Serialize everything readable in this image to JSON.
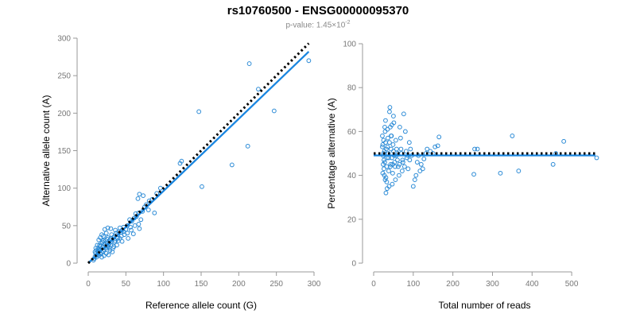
{
  "header": {
    "title": "rs10760500 - ENSG00000095370",
    "subtitle_prefix": "p-value: 1.45×10",
    "subtitle_exponent": "-2"
  },
  "colors": {
    "points": "#2c8bd6",
    "fit_line": "#1a86e0",
    "reference_line": "#000000"
  },
  "chart_data": [
    {
      "type": "scatter",
      "xlabel": "Reference allele count (G)",
      "ylabel": "Alternative allele count (A)",
      "xlim": [
        0,
        300
      ],
      "ylim": [
        0,
        300
      ],
      "xticks": [
        0,
        50,
        100,
        150,
        200,
        250,
        300
      ],
      "yticks": [
        0,
        50,
        100,
        150,
        200,
        250,
        300
      ],
      "grid": false,
      "fit_line": {
        "x": [
          0,
          293
        ],
        "y": [
          0,
          282
        ]
      },
      "reference_line": {
        "x": [
          0,
          293
        ],
        "y": [
          0,
          293
        ]
      },
      "points": [
        [
          293,
          270
        ],
        [
          214,
          266
        ],
        [
          226,
          232
        ],
        [
          247,
          203
        ],
        [
          147,
          202
        ],
        [
          212,
          156
        ],
        [
          191,
          131
        ],
        [
          151,
          102
        ],
        [
          124,
          136
        ],
        [
          122,
          133
        ],
        [
          96,
          100
        ],
        [
          91,
          93
        ],
        [
          85,
          85
        ],
        [
          81,
          83
        ],
        [
          77,
          78
        ],
        [
          73,
          90
        ],
        [
          68,
          92
        ],
        [
          66,
          86
        ],
        [
          75,
          75
        ],
        [
          72,
          69
        ],
        [
          67,
          67
        ],
        [
          63,
          66
        ],
        [
          61,
          60
        ],
        [
          58,
          56
        ],
        [
          55,
          58
        ],
        [
          67,
          52
        ],
        [
          68,
          46
        ],
        [
          56,
          48
        ],
        [
          52,
          50
        ],
        [
          50,
          45
        ],
        [
          47,
          48
        ],
        [
          45,
          44
        ],
        [
          43,
          41
        ],
        [
          41,
          42
        ],
        [
          39,
          38
        ],
        [
          37,
          40
        ],
        [
          35,
          36
        ],
        [
          33,
          34
        ],
        [
          31,
          29
        ],
        [
          30,
          33
        ],
        [
          29,
          31
        ],
        [
          28,
          26
        ],
        [
          27,
          24
        ],
        [
          26,
          22
        ],
        [
          25,
          27
        ],
        [
          24,
          20
        ],
        [
          23,
          23
        ],
        [
          22,
          25
        ],
        [
          21,
          18
        ],
        [
          20,
          16
        ],
        [
          19,
          21
        ],
        [
          18,
          14
        ],
        [
          17,
          19
        ],
        [
          16,
          12
        ],
        [
          15,
          17
        ],
        [
          14,
          10
        ],
        [
          13,
          15
        ],
        [
          12,
          11
        ],
        [
          11,
          8
        ],
        [
          10,
          13
        ],
        [
          9,
          9
        ],
        [
          8,
          6
        ],
        [
          7,
          4
        ],
        [
          30,
          46
        ],
        [
          26,
          47
        ],
        [
          22,
          45
        ],
        [
          18,
          38
        ],
        [
          16,
          34
        ],
        [
          14,
          31
        ],
        [
          20,
          36
        ],
        [
          35,
          28
        ],
        [
          40,
          30
        ],
        [
          44,
          36
        ],
        [
          48,
          38
        ],
        [
          38,
          24
        ],
        [
          33,
          20
        ],
        [
          29,
          17
        ],
        [
          24,
          13
        ],
        [
          21,
          10
        ],
        [
          18,
          8
        ],
        [
          32,
          15
        ],
        [
          27,
          11
        ],
        [
          23,
          30
        ],
        [
          26,
          34
        ],
        [
          19,
          28
        ],
        [
          15,
          24
        ],
        [
          13,
          20
        ],
        [
          11,
          17
        ],
        [
          9,
          15
        ],
        [
          12,
          24
        ],
        [
          10,
          20
        ],
        [
          28,
          20
        ],
        [
          34,
          22
        ],
        [
          36,
          30
        ],
        [
          42,
          33
        ],
        [
          45,
          29
        ],
        [
          52,
          40
        ],
        [
          57,
          44
        ],
        [
          62,
          50
        ],
        [
          64,
          62
        ],
        [
          70,
          58
        ],
        [
          80,
          71
        ],
        [
          88,
          67
        ],
        [
          60,
          39
        ],
        [
          53,
          33
        ],
        [
          47,
          42
        ],
        [
          39,
          33
        ],
        [
          31,
          38
        ],
        [
          25,
          32
        ],
        [
          17,
          27
        ],
        [
          16,
          22
        ],
        [
          14,
          18
        ],
        [
          13,
          12
        ],
        [
          20,
          30
        ],
        [
          24,
          40
        ],
        [
          30,
          24
        ],
        [
          36,
          44
        ],
        [
          42,
          47
        ]
      ]
    },
    {
      "type": "scatter",
      "xlabel": "Total number of reads",
      "ylabel": "Percentage alternative (A)",
      "xlim": [
        0,
        560
      ],
      "ylim": [
        0,
        100
      ],
      "xticks": [
        0,
        100,
        200,
        300,
        400,
        500
      ],
      "yticks": [
        0,
        20,
        40,
        60,
        80,
        100
      ],
      "grid": false,
      "fit_line": {
        "x": [
          0,
          560
        ],
        "y": [
          49.1,
          49.1
        ]
      },
      "reference_line": {
        "x": [
          0,
          560
        ],
        "y": [
          50,
          50
        ]
      },
      "points": [
        [
          563,
          48
        ],
        [
          480,
          55.5
        ],
        [
          460,
          50
        ],
        [
          453,
          45
        ],
        [
          350,
          58
        ],
        [
          366,
          42
        ],
        [
          320,
          41
        ],
        [
          262,
          52
        ],
        [
          255,
          52
        ],
        [
          253,
          40.5
        ],
        [
          165,
          57.5
        ],
        [
          162,
          53.5
        ],
        [
          155,
          53
        ],
        [
          150,
          50
        ],
        [
          143,
          51
        ],
        [
          135,
          52
        ],
        [
          132,
          50
        ],
        [
          127,
          47.5
        ],
        [
          124,
          43
        ],
        [
          120,
          45
        ],
        [
          117,
          42
        ],
        [
          113,
          49
        ],
        [
          110,
          46
        ],
        [
          107,
          40
        ],
        [
          104,
          38
        ],
        [
          100,
          35
        ],
        [
          96,
          49
        ],
        [
          93,
          52
        ],
        [
          90,
          55
        ],
        [
          87,
          43
        ],
        [
          84,
          48
        ],
        [
          80,
          60
        ],
        [
          76,
          68
        ],
        [
          74,
          46
        ],
        [
          72,
          42
        ],
        [
          70,
          50
        ],
        [
          68,
          57
        ],
        [
          66,
          62
        ],
        [
          64,
          40
        ],
        [
          62,
          44
        ],
        [
          60,
          47
        ],
        [
          58,
          52
        ],
        [
          56,
          56
        ],
        [
          55,
          38
        ],
        [
          54,
          44
        ],
        [
          52,
          49
        ],
        [
          51,
          64
        ],
        [
          50,
          67
        ],
        [
          49,
          54
        ],
        [
          48,
          41
        ],
        [
          47,
          36
        ],
        [
          46,
          48
        ],
        [
          45,
          58
        ],
        [
          44,
          52
        ],
        [
          43,
          45
        ],
        [
          42,
          62
        ],
        [
          41,
          71
        ],
        [
          40,
          69
        ],
        [
          39,
          35
        ],
        [
          38,
          42
        ],
        [
          37,
          50
        ],
        [
          36,
          57
        ],
        [
          35,
          61
        ],
        [
          34,
          48
        ],
        [
          33,
          44
        ],
        [
          32,
          52
        ],
        [
          31,
          39
        ],
        [
          30,
          55
        ],
        [
          29,
          60
        ],
        [
          28,
          46
        ],
        [
          27,
          51
        ],
        [
          26,
          43
        ],
        [
          25,
          56
        ],
        [
          24,
          49
        ],
        [
          23,
          41
        ],
        [
          22,
          53
        ],
        [
          34,
          34
        ],
        [
          33,
          37
        ],
        [
          31,
          32
        ],
        [
          29,
          38
        ],
        [
          27,
          40
        ],
        [
          26,
          47
        ],
        [
          25,
          50
        ],
        [
          24,
          45
        ],
        [
          23,
          54
        ],
        [
          22,
          58
        ],
        [
          28,
          62
        ],
        [
          30,
          65
        ],
        [
          35,
          53
        ],
        [
          38,
          48
        ],
        [
          40,
          55
        ],
        [
          42,
          44
        ],
        [
          44,
          58
        ],
        [
          46,
          63
        ],
        [
          48,
          45
        ],
        [
          50,
          51
        ],
        [
          53,
          46
        ],
        [
          57,
          49
        ],
        [
          61,
          50
        ],
        [
          65,
          45
        ],
        [
          69,
          52
        ],
        [
          73,
          47
        ],
        [
          78,
          44
        ],
        [
          82,
          51
        ],
        [
          86,
          49
        ],
        [
          91,
          47
        ]
      ]
    }
  ]
}
